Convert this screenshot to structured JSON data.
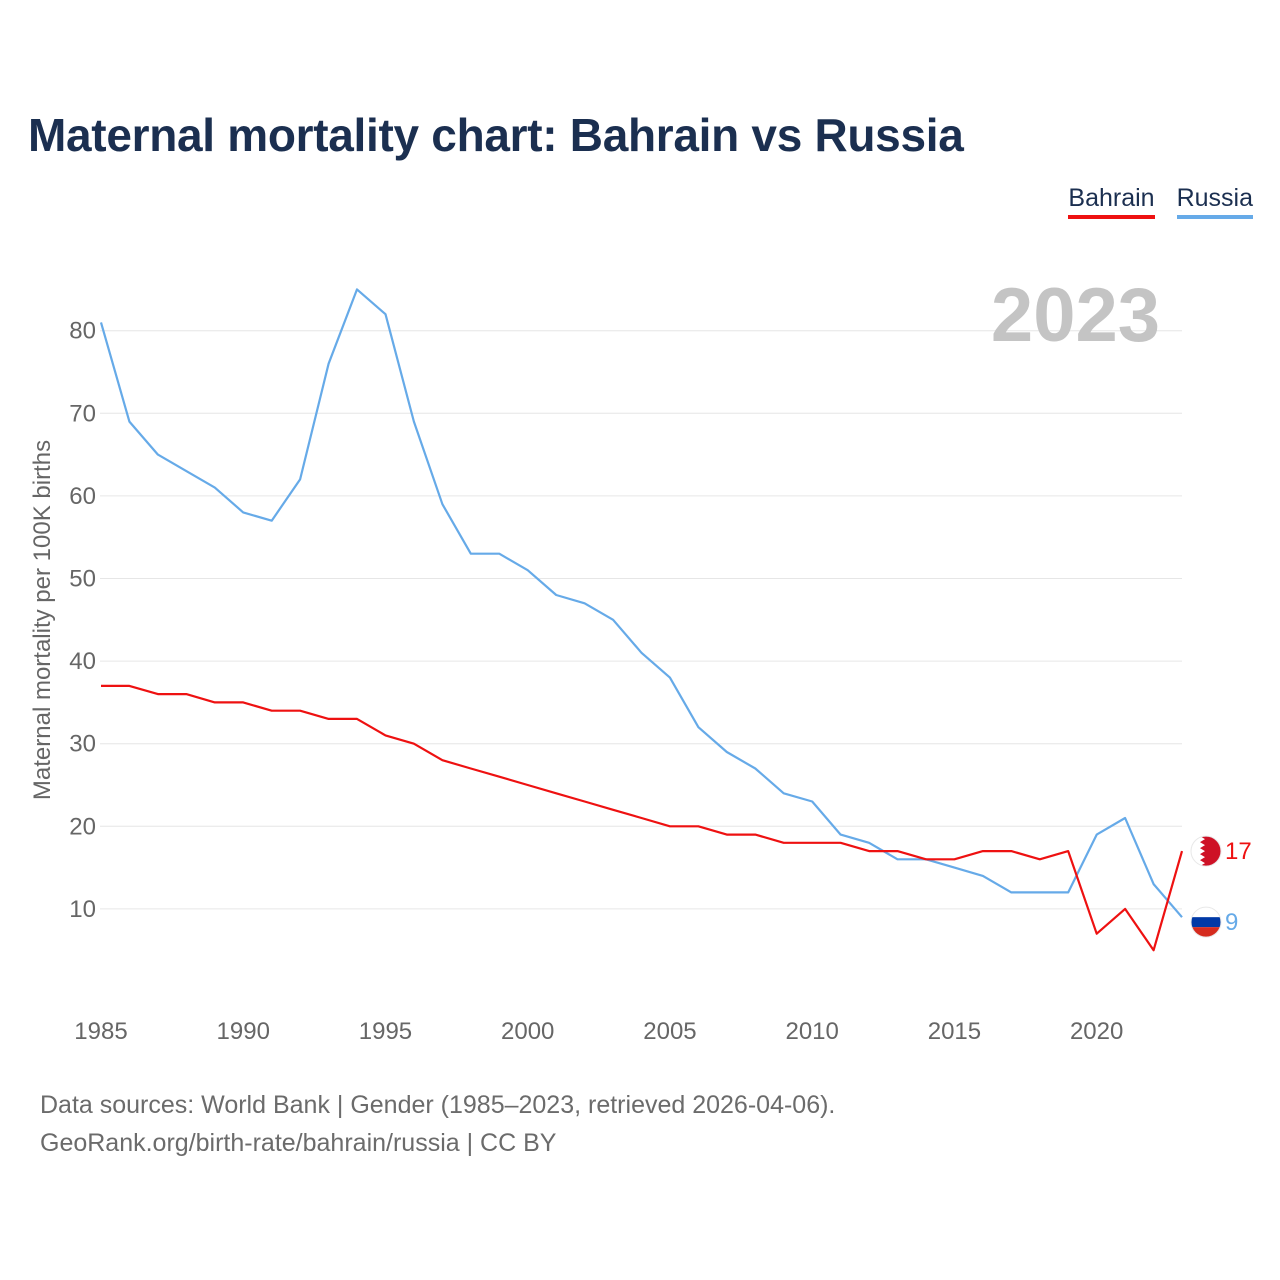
{
  "title": "Maternal mortality chart: Bahrain vs Russia",
  "legend": [
    {
      "name": "Bahrain",
      "color": "#ee1111"
    },
    {
      "name": "Russia",
      "color": "#66aae8"
    }
  ],
  "footer": {
    "line1": "Data sources: World Bank | Gender (1985–2023, retrieved 2026-04-06).",
    "line2": "GeoRank.org/birth-rate/bahrain/russia | CC BY"
  },
  "chart_data": {
    "type": "line",
    "title": "Maternal mortality chart: Bahrain vs Russia",
    "xlabel": "",
    "ylabel": "Maternal mortality per 100K births",
    "year_label": "2023",
    "xlim": [
      1985,
      2023
    ],
    "ylim": [
      0,
      85
    ],
    "x_ticks": [
      1985,
      1990,
      1995,
      2000,
      2005,
      2010,
      2015,
      2020
    ],
    "y_ticks": [
      10,
      20,
      30,
      40,
      50,
      60,
      70,
      80
    ],
    "grid": true,
    "legend_position": "top-right",
    "x": [
      1985,
      1986,
      1987,
      1988,
      1989,
      1990,
      1991,
      1992,
      1993,
      1994,
      1995,
      1996,
      1997,
      1998,
      1999,
      2000,
      2001,
      2002,
      2003,
      2004,
      2005,
      2006,
      2007,
      2008,
      2009,
      2010,
      2011,
      2012,
      2013,
      2014,
      2015,
      2016,
      2017,
      2018,
      2019,
      2020,
      2021,
      2022,
      2023
    ],
    "series": [
      {
        "name": "Bahrain",
        "color": "#ee1111",
        "end_label": "17",
        "values": [
          37,
          37,
          36,
          36,
          35,
          35,
          34,
          34,
          33,
          33,
          31,
          30,
          28,
          27,
          26,
          25,
          24,
          23,
          22,
          21,
          20,
          20,
          19,
          19,
          18,
          18,
          18,
          17,
          17,
          16,
          16,
          17,
          17,
          16,
          17,
          7,
          10,
          5,
          17
        ]
      },
      {
        "name": "Russia",
        "color": "#66aae8",
        "end_label": "9",
        "values": [
          81,
          69,
          65,
          63,
          61,
          58,
          57,
          62,
          76,
          85,
          82,
          69,
          59,
          53,
          53,
          51,
          48,
          47,
          45,
          41,
          38,
          32,
          29,
          27,
          24,
          23,
          19,
          18,
          16,
          16,
          15,
          14,
          12,
          12,
          12,
          19,
          21,
          13,
          9
        ]
      }
    ]
  }
}
